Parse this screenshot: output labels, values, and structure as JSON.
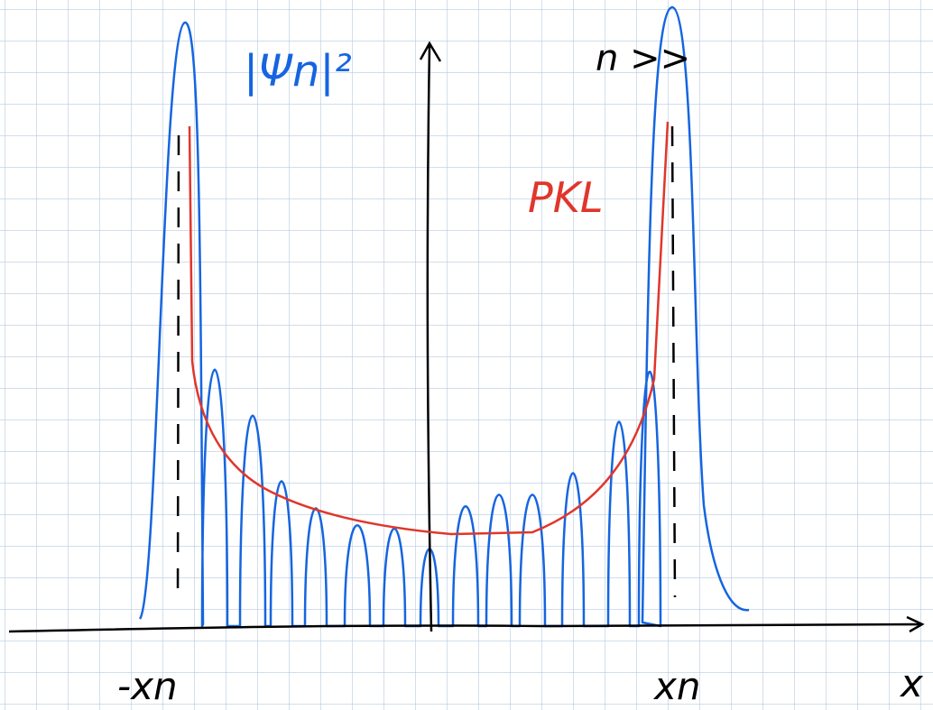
{
  "labels": {
    "wavefunction": "|Ψn|²",
    "condition": "n >>",
    "classical": "PKL",
    "left_turning_point": "-xn",
    "right_turning_point": "xn",
    "axis": "x"
  }
}
